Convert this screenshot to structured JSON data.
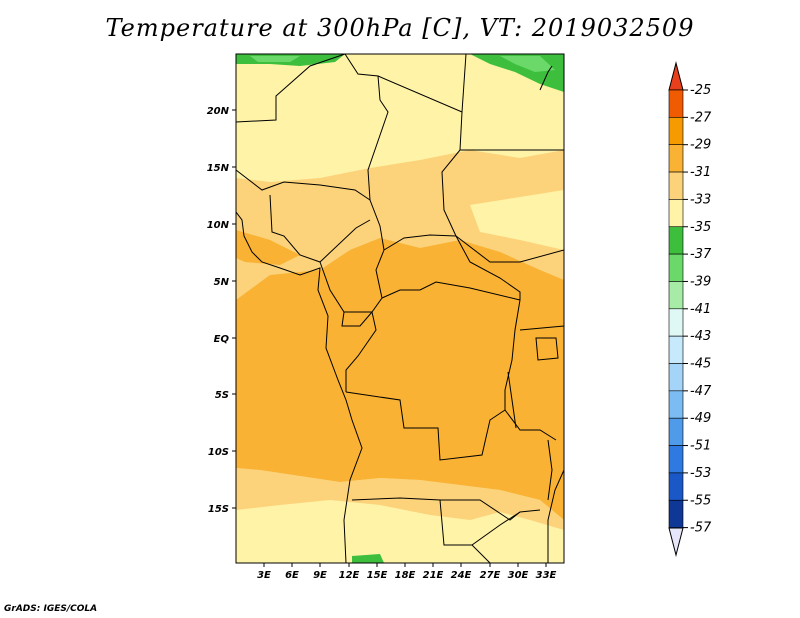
{
  "title": "Temperature at 300hPa [C], VT: 2019032509",
  "credit": "GrADS: IGES/COLA",
  "axes": {
    "lat_ticks": [
      "20N",
      "15N",
      "10N",
      "5N",
      "EQ",
      "5S",
      "10S",
      "15S"
    ],
    "lon_ticks": [
      "3E",
      "6E",
      "9E",
      "12E",
      "15E",
      "18E",
      "21E",
      "24E",
      "27E",
      "30E",
      "33E"
    ]
  },
  "colorbar": {
    "labels": [
      "-25",
      "-27",
      "-29",
      "-31",
      "-33",
      "-35",
      "-37",
      "-39",
      "-41",
      "-43",
      "-45",
      "-47",
      "-49",
      "-51",
      "-53",
      "-55",
      "-57"
    ],
    "colors": [
      "#f05a00",
      "#f59b00",
      "#f9b233",
      "#fcd37a",
      "#fff3a8",
      "#3dbf3d",
      "#6ad96a",
      "#a6eca6",
      "#dff7f5",
      "#c6e9fb",
      "#a4d4f7",
      "#7bbcf3",
      "#4f9be9",
      "#2e7ae0",
      "#1a58c8",
      "#0f3795",
      "#0a1c6e"
    ],
    "top_arrow_color": "#e8401c",
    "bottom_arrow_color": "#e6e6fa"
  },
  "field_colors": {
    "warmest": "#f9b233",
    "warm": "#fcd37a",
    "cool": "#fff3a8",
    "cold": "#3dbf3d",
    "colder": "#6ad96a"
  }
}
